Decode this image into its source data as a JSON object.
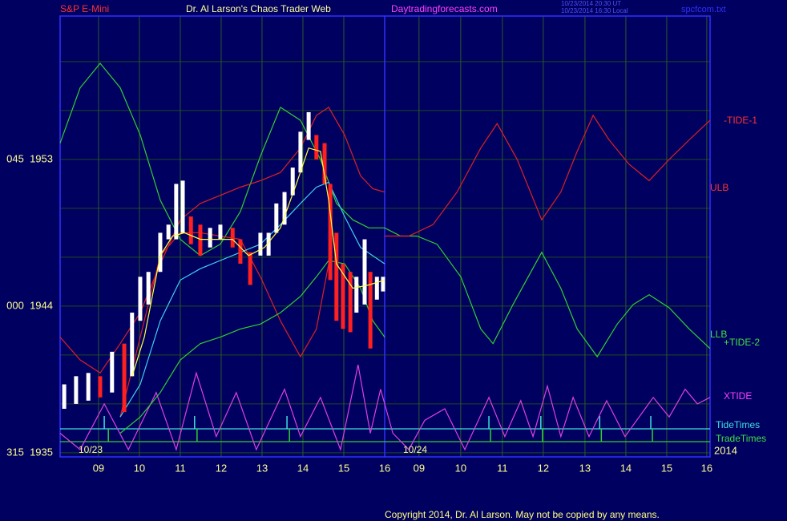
{
  "header": {
    "symbol": "S&P E-Mini",
    "site_title": "Dr. Al Larson's Chaos Trader Web",
    "url": "Daytradingforecasts.com",
    "time_ut": "10/23/2014 20:30 UT",
    "time_local": "10/23/2014 16:30 Local",
    "file": "spcfcom.txt"
  },
  "footer": {
    "copyright": "Copyright 2014, Dr. Al Larson. May not be copied by any means."
  },
  "date_labels": [
    "10/23",
    "10/24",
    "2014"
  ],
  "chart_data": {
    "type": "line",
    "xlim": [
      8.06,
      23.96
    ],
    "ylim": [
      1934.75,
      1961.8
    ],
    "xticks": [
      {
        "value": 9,
        "label": "09"
      },
      10,
      11,
      12,
      13,
      14,
      15,
      16,
      {
        "value": 16.84,
        "label": "09"
      },
      {
        "value": 17.86,
        "label": "10"
      },
      {
        "value": 18.88,
        "label": "11"
      },
      {
        "value": 19.88,
        "label": "12"
      },
      {
        "value": 20.9,
        "label": "13"
      },
      {
        "value": 21.9,
        "label": "14"
      },
      {
        "value": 22.9,
        "label": "15"
      },
      {
        "value": 23.88,
        "label": "16"
      }
    ],
    "yticks": [
      {
        "value": 1953,
        "label": "045  1953"
      },
      {
        "value": 1944,
        "label": "000  1944"
      },
      {
        "value": 1935,
        "label": "315  1935"
      }
    ],
    "ygrid": [
      1938,
      1941,
      1947,
      1950,
      1956,
      1959
    ],
    "grid": true,
    "labels": [
      {
        "text": "-TIDE-1",
        "color": "#ff3030"
      },
      {
        "text": "ULB",
        "color": "#ff3030"
      },
      {
        "text": "LLB",
        "color": "#40e040"
      },
      {
        "text": "+TIDE-2",
        "color": "#40e040"
      },
      {
        "text": "XTIDE",
        "color": "#ff40ff"
      },
      {
        "text": "TideTimes",
        "color": "#40e0e0"
      },
      {
        "text": "TradeTimes",
        "color": "#40e040"
      }
    ],
    "tide_times": [
      9.14,
      11.35,
      13.61,
      18.55,
      19.82,
      21.26,
      22.51
    ],
    "trade_times": [
      9.24,
      11.41,
      13.67,
      18.59,
      19.86,
      21.3,
      22.55
    ],
    "series": [
      {
        "color": "#e040e0",
        "x": [
          8.06,
          8.55,
          9.14,
          9.73,
          10.41,
          10.9,
          11.39,
          11.88,
          12.37,
          12.86,
          13.55,
          13.94,
          14.43,
          14.92,
          15.35,
          15.65,
          15.9,
          16.2,
          16.59,
          16.98,
          17.47,
          17.96,
          18.55,
          18.94,
          19.33,
          19.63,
          19.98,
          20.31,
          20.61,
          21.0,
          21.43,
          21.88,
          22.57,
          22.96,
          23.35,
          23.65,
          23.96
        ],
        "values": [
          1936.2,
          1935.2,
          1938.0,
          1935.2,
          1938.7,
          1935.2,
          1939.9,
          1936.0,
          1938.7,
          1935.2,
          1938.9,
          1936.0,
          1938.4,
          1935.2,
          1940.4,
          1936.2,
          1938.9,
          1936.2,
          1935.2,
          1937.0,
          1937.7,
          1935.2,
          1938.4,
          1936.0,
          1938.2,
          1936.0,
          1939.1,
          1936.0,
          1938.4,
          1936.0,
          1938.2,
          1936.0,
          1938.4,
          1937.2,
          1938.9,
          1938.0,
          1938.4
        ]
      },
      {
        "color": "#30d030",
        "x": [
          8.06,
          8.55,
          9.04,
          9.53,
          10.02,
          10.51,
          11.0,
          11.49,
          11.98,
          12.47,
          12.96,
          13.45,
          13.94,
          14.43,
          14.82,
          15.22,
          15.61,
          16.0,
          16.39,
          16.79,
          17.28,
          17.86,
          18.35,
          18.65,
          19.14,
          19.84,
          20.31,
          20.71,
          21.2,
          21.69,
          22.08,
          22.47,
          22.96,
          23.45,
          23.96
        ],
        "values": [
          1954.0,
          1957.4,
          1958.9,
          1957.4,
          1954.5,
          1950.5,
          1948.1,
          1947.1,
          1947.8,
          1949.8,
          1953.2,
          1956.2,
          1955.4,
          1953.0,
          1950.3,
          1949.3,
          1948.8,
          1948.8,
          1948.3,
          1948.3,
          1947.8,
          1945.8,
          1942.6,
          1941.7,
          1944.1,
          1947.3,
          1945.1,
          1942.6,
          1940.9,
          1942.9,
          1944.1,
          1944.7,
          1943.9,
          1942.6,
          1941.4
        ]
      },
      {
        "color": "#e02020",
        "x": [
          16.0,
          16.59,
          17.18,
          17.77,
          18.35,
          18.75,
          19.24,
          19.84,
          20.31,
          20.71,
          21.1,
          21.49,
          21.98,
          22.47,
          22.96,
          23.45,
          23.96
        ],
        "values": [
          1948.3,
          1948.3,
          1949.0,
          1951.0,
          1953.7,
          1955.2,
          1953.0,
          1949.3,
          1951.0,
          1953.5,
          1955.7,
          1954.2,
          1952.7,
          1951.7,
          1953.0,
          1954.2,
          1955.4
        ]
      },
      {
        "color": "#e02020",
        "x": [
          8.06,
          8.55,
          9.04,
          9.53,
          10.02,
          10.51,
          11.0,
          11.49,
          11.98,
          12.47,
          12.96,
          13.45,
          13.94,
          14.33,
          14.63,
          15.02,
          15.41,
          15.71,
          16.0
        ],
        "values": [
          1942.1,
          1940.7,
          1939.9,
          1941.7,
          1943.6,
          1946.6,
          1949.3,
          1950.3,
          1950.8,
          1951.3,
          1951.7,
          1952.2,
          1953.7,
          1955.7,
          1956.2,
          1954.5,
          1952.0,
          1951.2,
          1951.0
        ]
      },
      {
        "color": "#e02020",
        "x": [
          9.53,
          10.02,
          10.51,
          11.0,
          11.49,
          11.98,
          12.47,
          12.96,
          13.45,
          13.94,
          14.33,
          14.63
        ],
        "values": [
          1937.2,
          1942.1,
          1947.1,
          1948.5,
          1948.5,
          1948.3,
          1948.1,
          1945.8,
          1943.1,
          1940.9,
          1942.6,
          1946.6
        ]
      },
      {
        "color": "#30d030",
        "x": [
          9.53,
          10.02,
          10.51,
          11.0,
          11.49,
          11.98,
          12.47,
          12.96,
          13.45,
          13.94,
          14.33,
          14.63,
          15.02,
          15.41,
          15.71,
          16.0
        ],
        "values": [
          1936.2,
          1937.2,
          1938.7,
          1940.7,
          1941.7,
          1942.1,
          1942.6,
          1942.9,
          1943.6,
          1944.6,
          1945.8,
          1946.8,
          1946.6,
          1945.1,
          1943.1,
          1942.1
        ]
      },
      {
        "color": "#40d0f0",
        "x": [
          9.53,
          10.02,
          10.51,
          11.0,
          11.49,
          11.98,
          12.47,
          12.96,
          13.45,
          13.94,
          14.33,
          14.63,
          15.02,
          15.41,
          16.0
        ],
        "values": [
          1937.2,
          1939.2,
          1943.1,
          1945.6,
          1946.3,
          1946.8,
          1947.3,
          1947.8,
          1949.0,
          1950.3,
          1951.3,
          1951.6,
          1949.5,
          1947.6,
          1946.6
        ]
      }
    ],
    "bars": {
      "x": [
        8.16,
        8.45,
        8.75,
        9.04,
        9.33,
        9.63,
        9.82,
        10.02,
        10.22,
        10.51,
        10.71,
        10.9,
        11.06,
        11.26,
        11.49,
        11.73,
        11.98,
        12.28,
        12.47,
        12.71,
        12.96,
        13.16,
        13.35,
        13.55,
        13.75,
        13.94,
        14.14,
        14.33,
        14.53,
        14.67,
        14.82,
        14.98,
        15.16,
        15.31,
        15.51,
        15.65,
        15.81,
        15.96
      ],
      "high": [
        1939.2,
        1939.7,
        1939.9,
        1939.7,
        1941.2,
        1941.7,
        1943.6,
        1945.8,
        1946.1,
        1948.5,
        1949.0,
        1951.5,
        1951.7,
        1949.5,
        1949.0,
        1948.8,
        1949.0,
        1948.8,
        1948.1,
        1947.3,
        1948.5,
        1948.5,
        1950.3,
        1951.0,
        1952.5,
        1954.7,
        1955.9,
        1954.5,
        1954.0,
        1951.5,
        1948.5,
        1946.6,
        1946.1,
        1945.8,
        1948.1,
        1946.1,
        1945.8,
        1945.8
      ],
      "low": [
        1937.7,
        1938.0,
        1938.2,
        1938.4,
        1938.7,
        1937.5,
        1939.7,
        1943.1,
        1944.1,
        1946.1,
        1948.1,
        1948.1,
        1948.5,
        1947.8,
        1947.1,
        1947.6,
        1948.1,
        1947.6,
        1946.6,
        1945.3,
        1947.1,
        1947.1,
        1948.5,
        1949.0,
        1950.8,
        1952.2,
        1954.2,
        1953.0,
        1951.5,
        1945.6,
        1943.1,
        1942.6,
        1942.4,
        1943.6,
        1944.1,
        1941.4,
        1944.4,
        1944.9
      ],
      "colors": [
        "#ffffff",
        "#ffffff",
        "#ffffff",
        "#ff2020",
        "#ffffff",
        "#ff2020",
        "#ffffff",
        "#ffffff",
        "#ffffff",
        "#ffffff",
        "#ffffff",
        "#ffffff",
        "#ffffff",
        "#ff2020",
        "#ff2020",
        "#ffffff",
        "#ffffff",
        "#ff2020",
        "#ff2020",
        "#ff2020",
        "#ffffff",
        "#ffffff",
        "#ffffff",
        "#ffffff",
        "#ffffff",
        "#ffffff",
        "#ffffff",
        "#ff2020",
        "#ff2020",
        "#ff2020",
        "#ff2020",
        "#ff2020",
        "#ff2020",
        "#ffffff",
        "#ffffff",
        "#ff2020",
        "#ffffff",
        "#ffffff"
      ]
    },
    "ma": {
      "color": "#ffff40",
      "x": [
        9.82,
        10.12,
        10.51,
        10.81,
        11.1,
        11.49,
        11.88,
        12.28,
        12.67,
        13.06,
        13.45,
        13.84,
        14.14,
        14.43,
        14.63,
        14.82,
        15.22,
        15.61,
        16.0
      ],
      "values": [
        1939.7,
        1942.1,
        1947.1,
        1948.3,
        1948.5,
        1948.1,
        1948.1,
        1948.1,
        1947.1,
        1947.6,
        1948.8,
        1951.5,
        1953.7,
        1953.5,
        1950.5,
        1946.6,
        1945.1,
        1945.3,
        1945.6
      ]
    }
  }
}
